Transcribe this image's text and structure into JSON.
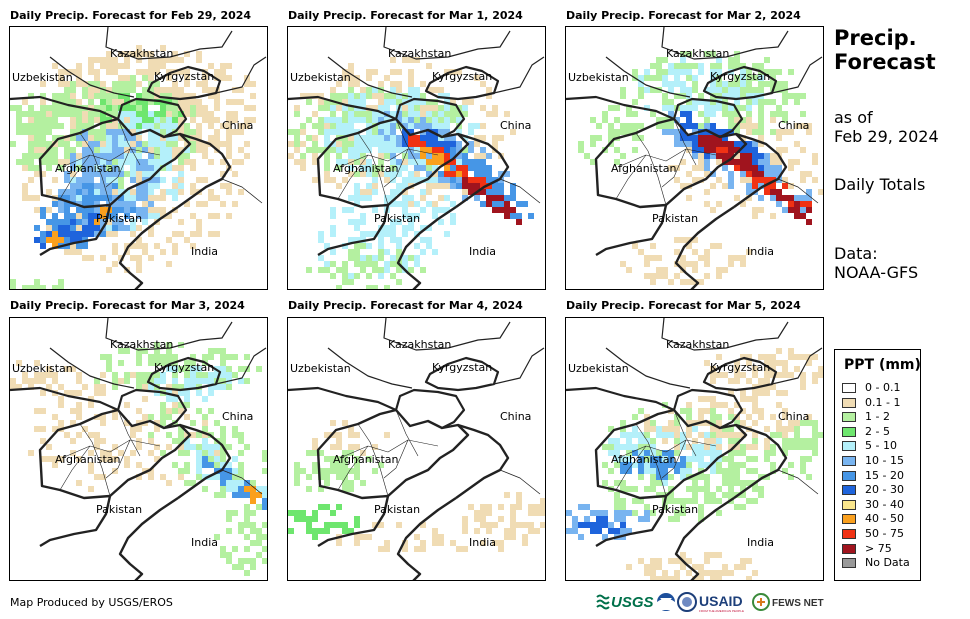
{
  "panels": [
    {
      "title": "Daily Precip. Forecast for Feb 29, 2024",
      "day": 0
    },
    {
      "title": "Daily Precip. Forecast for Mar 1, 2024",
      "day": 1
    },
    {
      "title": "Daily Precip. Forecast for Mar 2, 2024",
      "day": 2
    },
    {
      "title": "Daily Precip. Forecast for Mar 3, 2024",
      "day": 3
    },
    {
      "title": "Daily Precip. Forecast for Mar 4, 2024",
      "day": 4
    },
    {
      "title": "Daily Precip. Forecast for Mar 5, 2024",
      "day": 5
    }
  ],
  "map_labels": {
    "kazakhstan": "Kazakhstan",
    "uzbekistan": "Uzbekistan",
    "kyrgyzstan": "Kyrgyzstan",
    "china": "China",
    "afghanistan": "Afghanistan",
    "pakistan": "Pakistan",
    "india": "India"
  },
  "side": {
    "heading_line1": "Precip.",
    "heading_line2": "Forecast",
    "asof_line1": "as of",
    "asof_line2": "Feb 29, 2024",
    "totals": "Daily Totals",
    "data_line1": "Data:",
    "data_line2": "NOAA-GFS"
  },
  "legend": {
    "title": "PPT (mm)",
    "items": [
      {
        "label": "0 - 0.1",
        "color": "#ffffff"
      },
      {
        "label": "0.1 - 1",
        "color": "#f0dcb4"
      },
      {
        "label": "1 - 2",
        "color": "#b4f0a0"
      },
      {
        "label": "2 - 5",
        "color": "#6ee66e"
      },
      {
        "label": "5 - 10",
        "color": "#b4f0fa"
      },
      {
        "label": "10 - 15",
        "color": "#78b4f0"
      },
      {
        "label": "15 - 20",
        "color": "#4696e6"
      },
      {
        "label": "20 - 30",
        "color": "#1e64dc"
      },
      {
        "label": "30 - 40",
        "color": "#fae68c"
      },
      {
        "label": "40 - 50",
        "color": "#faa01e"
      },
      {
        "label": "50 - 75",
        "color": "#f03214"
      },
      {
        "label": "> 75",
        "color": "#a0141e"
      },
      {
        "label": "No Data",
        "color": "#999999"
      }
    ]
  },
  "footer": {
    "credit": "Map Produced by USGS/EROS"
  },
  "logos": {
    "usgs": "USGS",
    "usaid": "USAID",
    "fewsnet": "FEWS NET"
  }
}
